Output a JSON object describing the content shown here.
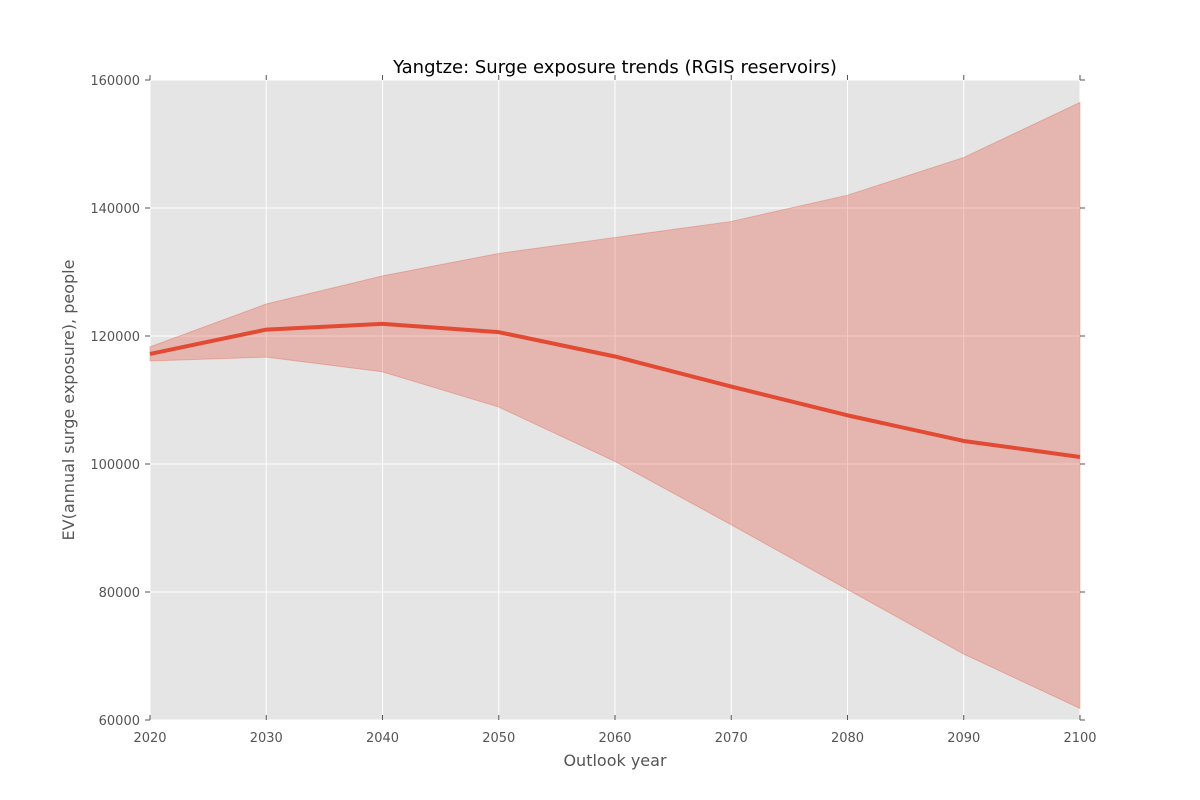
{
  "chart_data": {
    "type": "area",
    "title": "Yangtze: Surge exposure trends (RGIS reservoirs)",
    "xlabel": "Outlook year",
    "ylabel": "EV(annual surge exposure), people",
    "xlim": [
      2020,
      2100
    ],
    "ylim": [
      60000,
      160000
    ],
    "x_ticks": [
      "2020",
      "2030",
      "2040",
      "2050",
      "2060",
      "2070",
      "2080",
      "2090",
      "2100"
    ],
    "y_ticks": [
      "60000",
      "80000",
      "100000",
      "120000",
      "140000",
      "160000"
    ],
    "grid": true,
    "x": [
      2020,
      2030,
      2040,
      2050,
      2060,
      2070,
      2080,
      2090,
      2100
    ],
    "series": [
      {
        "type": "line",
        "values": [
          117200,
          121000,
          121900,
          120600,
          116800,
          112100,
          107600,
          103600,
          101100
        ],
        "color": "#e24a33"
      },
      {
        "type": "band",
        "upper": [
          118300,
          125000,
          129400,
          132900,
          135400,
          137900,
          142000,
          147900,
          156500
        ],
        "lower": [
          116100,
          116700,
          114400,
          108900,
          100400,
          90500,
          80400,
          70300,
          61800
        ],
        "color": "#e24a33",
        "opacity": 0.3
      }
    ],
    "colors": {
      "plot_background": "#e5e5e5",
      "grid": "#ffffff",
      "line": "#e24a33",
      "band": "#e24a33"
    }
  }
}
